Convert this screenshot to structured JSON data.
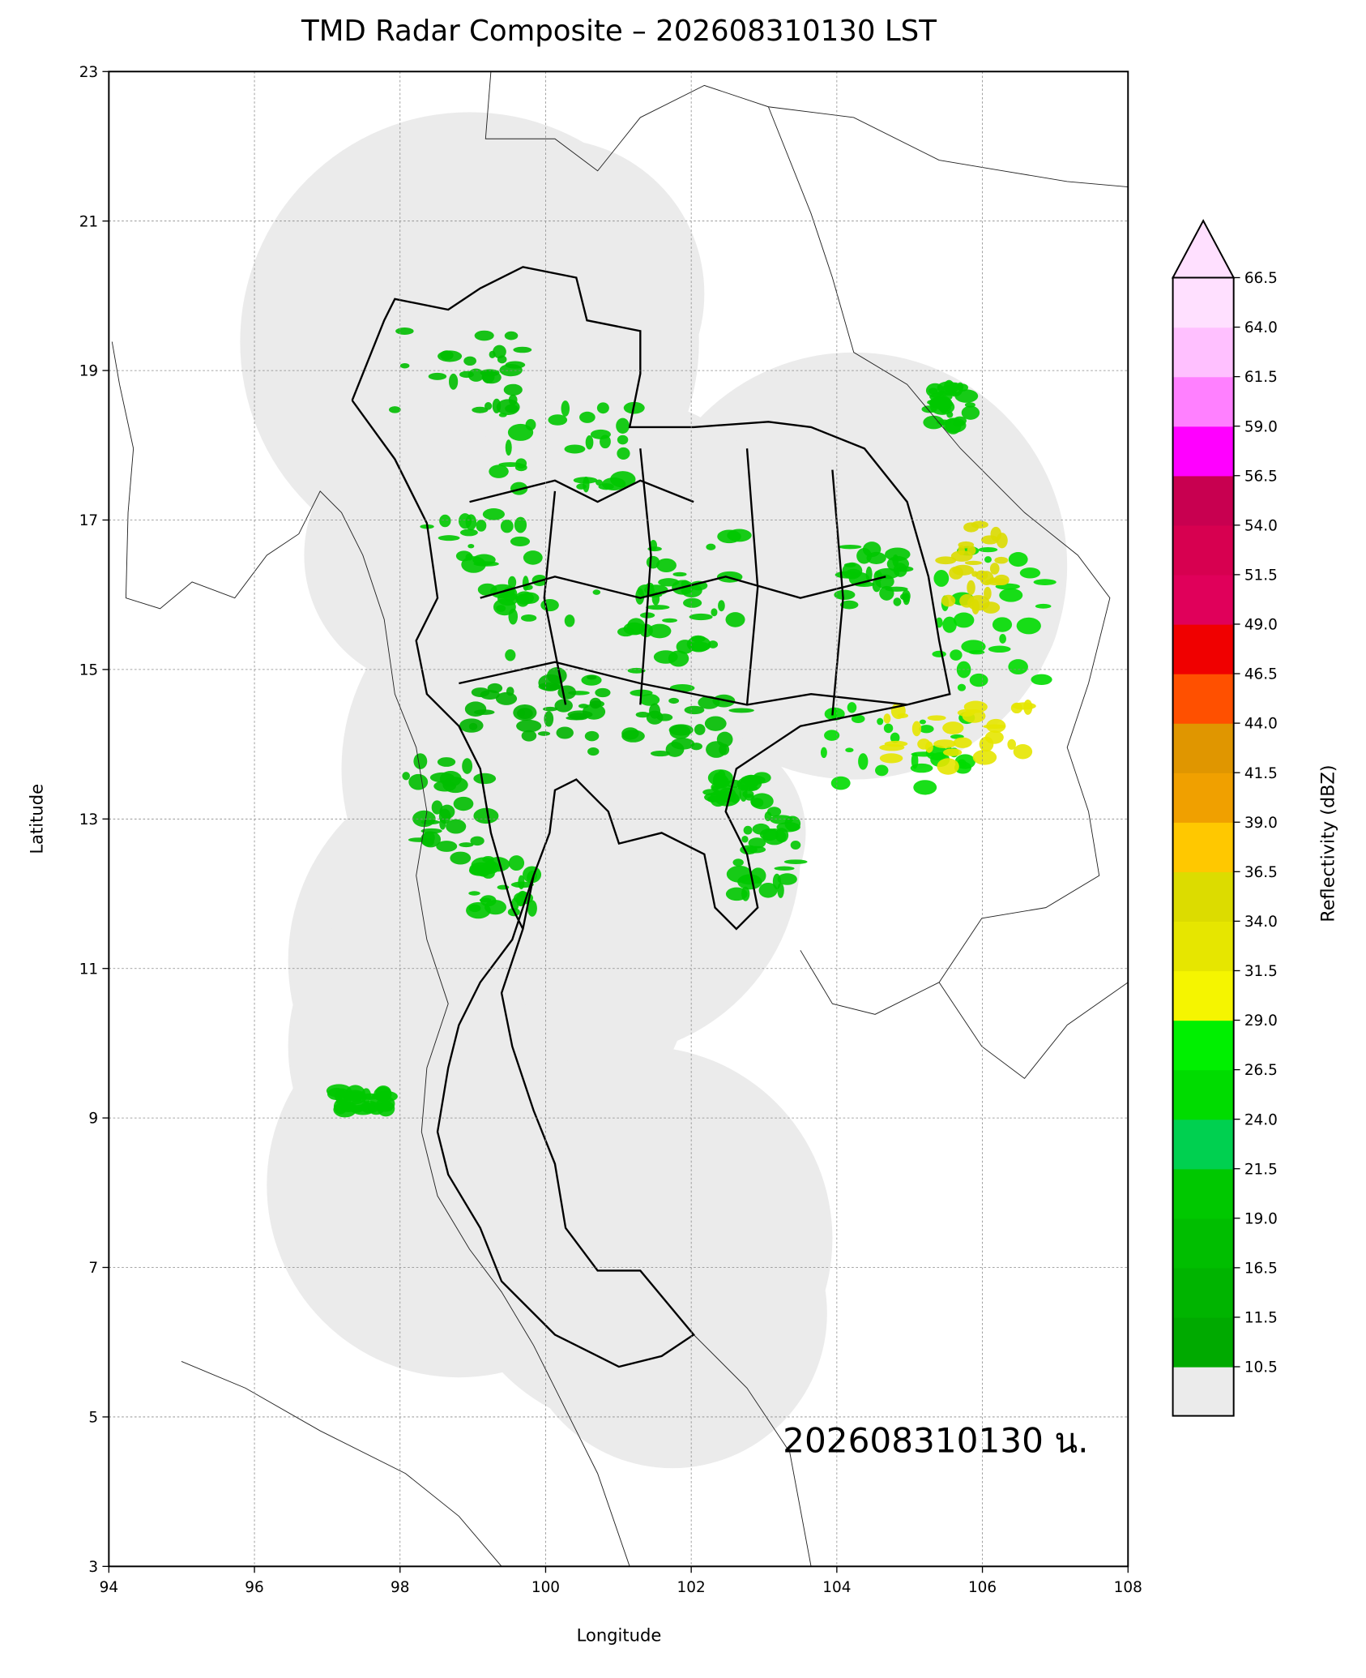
{
  "chart_data": {
    "type": "radar-map",
    "title": "TMD Radar Composite – 202608310130 LST",
    "xlabel": "Longitude",
    "ylabel": "Latitude",
    "annotation": "202608310130 น.",
    "xlim": [
      94,
      108
    ],
    "ylim": [
      3,
      23
    ],
    "xticks": [
      94,
      96,
      98,
      100,
      102,
      104,
      106,
      108
    ],
    "yticks": [
      3,
      5,
      7,
      9,
      11,
      13,
      15,
      17,
      19,
      21,
      23
    ],
    "grid": true,
    "colorbar": {
      "label": "Reflectivity (dBZ)",
      "levels": [
        10.5,
        11.5,
        16.5,
        {
          "value": 19,
          "label": "19.0"
        },
        21.5,
        {
          "value": 24,
          "label": "24.0"
        },
        26.5,
        {
          "value": 29,
          "label": "29.0"
        },
        31.5,
        {
          "value": 34,
          "label": "34.0"
        },
        36.5,
        {
          "value": 39,
          "label": "39.0"
        },
        41.5,
        {
          "value": 44,
          "label": "44.0"
        },
        46.5,
        {
          "value": 49,
          "label": "49.0"
        },
        51.5,
        {
          "value": 54,
          "label": "54.0"
        },
        56.5,
        {
          "value": 59,
          "label": "59.0"
        },
        61.5,
        {
          "value": 64,
          "label": "64.0"
        },
        66.5
      ],
      "colors": [
        "#00aa00",
        "#00b400",
        "#00be00",
        "#00c800",
        "#00d050",
        "#00dc00",
        "#00f000",
        "#f5f500",
        "#e6e600",
        "#dcdc00",
        "#ffc800",
        "#f0a000",
        "#e09600",
        "#ff5000",
        "#f00000",
        "#e0005a",
        "#d70050",
        "#c80050",
        "#ff00ff",
        "#ff80ff",
        "#ffc0ff",
        "#ffe0ff"
      ],
      "under_color": "#ebebeb",
      "over_color": "#ffe0ff"
    }
  }
}
